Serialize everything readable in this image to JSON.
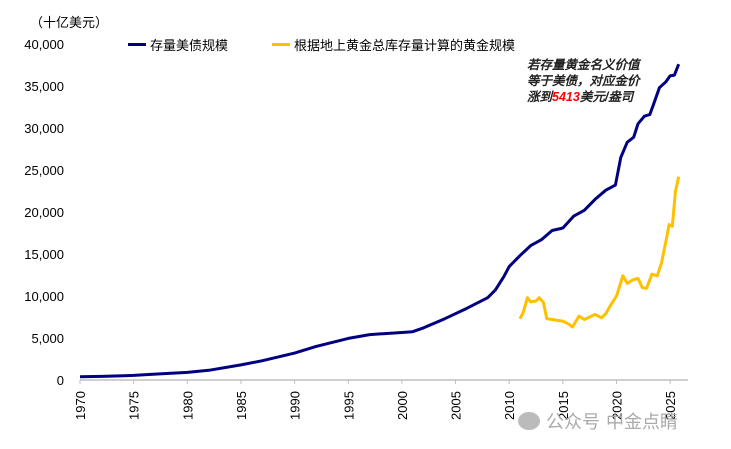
{
  "chart_data": {
    "type": "line",
    "ylabel": "（十亿美元）",
    "xlim": [
      1970,
      2026
    ],
    "ylim": [
      0,
      40000
    ],
    "x_ticks": [
      "1970",
      "1975",
      "1980",
      "1985",
      "1990",
      "1995",
      "2000",
      "2005",
      "2010",
      "2015",
      "2020",
      "2025"
    ],
    "y_ticks": [
      "0",
      "5,000",
      "10,000",
      "15,000",
      "20,000",
      "25,000",
      "30,000",
      "35,000",
      "40,000"
    ],
    "grid": false,
    "legend_position": "top",
    "series": [
      {
        "name": "存量美债规模",
        "color": "#000080",
        "points": [
          [
            1970,
            380
          ],
          [
            1972,
            430
          ],
          [
            1975,
            550
          ],
          [
            1977,
            700
          ],
          [
            1980,
            900
          ],
          [
            1982,
            1150
          ],
          [
            1985,
            1800
          ],
          [
            1987,
            2300
          ],
          [
            1990,
            3200
          ],
          [
            1992,
            4000
          ],
          [
            1995,
            4950
          ],
          [
            1997,
            5400
          ],
          [
            2000,
            5650
          ],
          [
            2001,
            5750
          ],
          [
            2002,
            6200
          ],
          [
            2004,
            7300
          ],
          [
            2006,
            8500
          ],
          [
            2008,
            9800
          ],
          [
            2008.7,
            10700
          ],
          [
            2009.5,
            12300
          ],
          [
            2010,
            13500
          ],
          [
            2011,
            14800
          ],
          [
            2012,
            16000
          ],
          [
            2013,
            16700
          ],
          [
            2014,
            17800
          ],
          [
            2015,
            18100
          ],
          [
            2016,
            19500
          ],
          [
            2017,
            20200
          ],
          [
            2018,
            21500
          ],
          [
            2019,
            22600
          ],
          [
            2019.9,
            23200
          ],
          [
            2020.4,
            26500
          ],
          [
            2021,
            28300
          ],
          [
            2021.6,
            28900
          ],
          [
            2022,
            30500
          ],
          [
            2022.6,
            31400
          ],
          [
            2023.1,
            31600
          ],
          [
            2023.5,
            33000
          ],
          [
            2024,
            34800
          ],
          [
            2024.6,
            35500
          ],
          [
            2025,
            36200
          ],
          [
            2025.4,
            36300
          ],
          [
            2025.8,
            37600
          ]
        ]
      },
      {
        "name": "根据地上黄金总库存量计算的黄金规模",
        "color": "#FFC000",
        "points": [
          [
            2011,
            7300
          ],
          [
            2011.3,
            8000
          ],
          [
            2011.7,
            9800
          ],
          [
            2012,
            9300
          ],
          [
            2012.5,
            9400
          ],
          [
            2012.8,
            9800
          ],
          [
            2013.2,
            9200
          ],
          [
            2013.5,
            7300
          ],
          [
            2014,
            7200
          ],
          [
            2014.5,
            7100
          ],
          [
            2015,
            7000
          ],
          [
            2015.5,
            6700
          ],
          [
            2015.9,
            6300
          ],
          [
            2016.5,
            7600
          ],
          [
            2017,
            7200
          ],
          [
            2017.5,
            7500
          ],
          [
            2018,
            7800
          ],
          [
            2018.6,
            7400
          ],
          [
            2019,
            7900
          ],
          [
            2019.5,
            9000
          ],
          [
            2020,
            10000
          ],
          [
            2020.6,
            12400
          ],
          [
            2021,
            11500
          ],
          [
            2021.5,
            11900
          ],
          [
            2022,
            12100
          ],
          [
            2022.4,
            11000
          ],
          [
            2022.8,
            10900
          ],
          [
            2023.3,
            12600
          ],
          [
            2023.8,
            12400
          ],
          [
            2024.2,
            14000
          ],
          [
            2024.6,
            16500
          ],
          [
            2024.9,
            18500
          ],
          [
            2025.2,
            18300
          ],
          [
            2025.5,
            22500
          ],
          [
            2025.8,
            24200
          ]
        ]
      }
    ],
    "annotation": {
      "line1": "若存量黄金名义价值",
      "line2": "等于美债，对应金价",
      "line3_prefix": "涨到",
      "line3_value": "5413",
      "line3_suffix": "美元/盎司",
      "value_color": "#FF0000"
    }
  },
  "watermark": {
    "text1": "公众号",
    "text2": "中金点睛"
  }
}
